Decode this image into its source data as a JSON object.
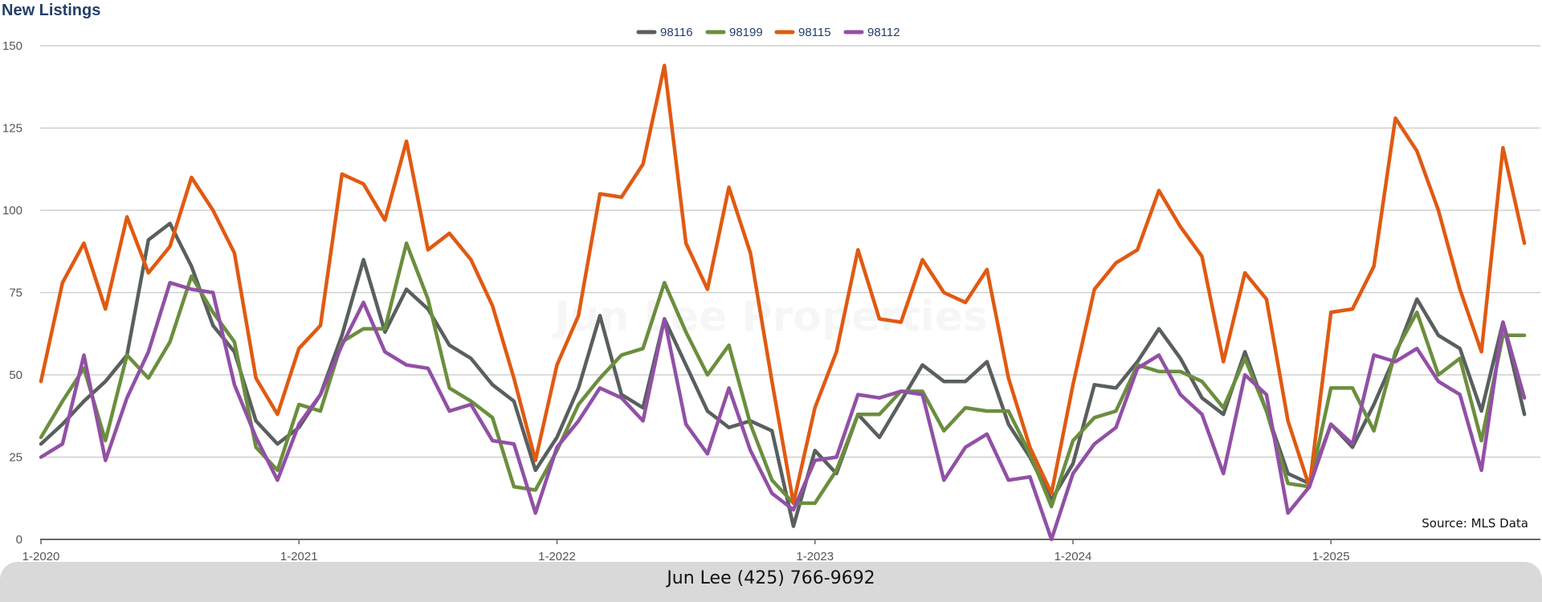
{
  "title": "New Listings",
  "footer": "Jun Lee (425) 766-9692",
  "chart_data": {
    "type": "line",
    "title": "New Listings",
    "source": "Source: MLS Data",
    "watermark": "Jun Lee Properties",
    "ylim": [
      0,
      150
    ],
    "yticks": [
      0,
      25,
      50,
      75,
      100,
      125,
      150
    ],
    "xticks": [
      {
        "label": "1-2020",
        "index": 0
      },
      {
        "label": "1-2021",
        "index": 12
      },
      {
        "label": "1-2022",
        "index": 24
      },
      {
        "label": "1-2023",
        "index": 36
      },
      {
        "label": "1-2024",
        "index": 48
      },
      {
        "label": "1-2025",
        "index": 60
      }
    ],
    "x_start": "1-2020",
    "n_months": 70,
    "grid": true,
    "legend_position": "top-center",
    "series": [
      {
        "name": "98116",
        "color": "#595f5f",
        "values": [
          29,
          35,
          42,
          48,
          56,
          91,
          96,
          83,
          65,
          57,
          36,
          29,
          34,
          44,
          62,
          85,
          63,
          76,
          70,
          59,
          55,
          47,
          42,
          21,
          31,
          46,
          68,
          44,
          40,
          67,
          53,
          39,
          34,
          36,
          33,
          4,
          27,
          20,
          38,
          31,
          42,
          53,
          48,
          48,
          54,
          35,
          25,
          12,
          23,
          47,
          46,
          54,
          64,
          55,
          43,
          38,
          57,
          39,
          20,
          17,
          35,
          28,
          41,
          56,
          73,
          62,
          58,
          39,
          66,
          38
        ]
      },
      {
        "name": "98199",
        "color": "#6b8e3e",
        "values": [
          31,
          42,
          52,
          30,
          56,
          49,
          60,
          80,
          69,
          60,
          28,
          21,
          41,
          39,
          60,
          64,
          64,
          90,
          73,
          46,
          42,
          37,
          16,
          15,
          27,
          41,
          49,
          56,
          58,
          78,
          63,
          50,
          59,
          35,
          18,
          11,
          11,
          21,
          38,
          38,
          45,
          45,
          33,
          40,
          39,
          39,
          26,
          10,
          30,
          37,
          39,
          53,
          51,
          51,
          48,
          40,
          55,
          39,
          17,
          16,
          46,
          46,
          33,
          57,
          69,
          50,
          55,
          30,
          62,
          62
        ]
      },
      {
        "name": "98115",
        "color": "#e05a12",
        "values": [
          48,
          78,
          90,
          70,
          98,
          81,
          89,
          110,
          100,
          87,
          49,
          38,
          58,
          65,
          111,
          108,
          97,
          121,
          88,
          93,
          85,
          71,
          49,
          24,
          53,
          68,
          105,
          104,
          114,
          144,
          90,
          76,
          107,
          87,
          48,
          11,
          40,
          57,
          88,
          67,
          66,
          85,
          75,
          72,
          82,
          49,
          28,
          14,
          47,
          76,
          84,
          88,
          106,
          95,
          86,
          54,
          81,
          73,
          36,
          16,
          69,
          70,
          83,
          128,
          118,
          100,
          76,
          57,
          119,
          90
        ]
      },
      {
        "name": "98112",
        "color": "#9150a5",
        "values": [
          25,
          29,
          56,
          24,
          43,
          57,
          78,
          76,
          75,
          47,
          31,
          18,
          35,
          44,
          59,
          72,
          57,
          53,
          52,
          39,
          41,
          30,
          29,
          8,
          28,
          36,
          46,
          43,
          36,
          67,
          35,
          26,
          46,
          27,
          14,
          9,
          24,
          25,
          44,
          43,
          45,
          44,
          18,
          28,
          32,
          18,
          19,
          0,
          20,
          29,
          34,
          52,
          56,
          44,
          38,
          20,
          50,
          44,
          8,
          16,
          35,
          29,
          56,
          54,
          58,
          48,
          44,
          21,
          66,
          43
        ]
      }
    ]
  }
}
